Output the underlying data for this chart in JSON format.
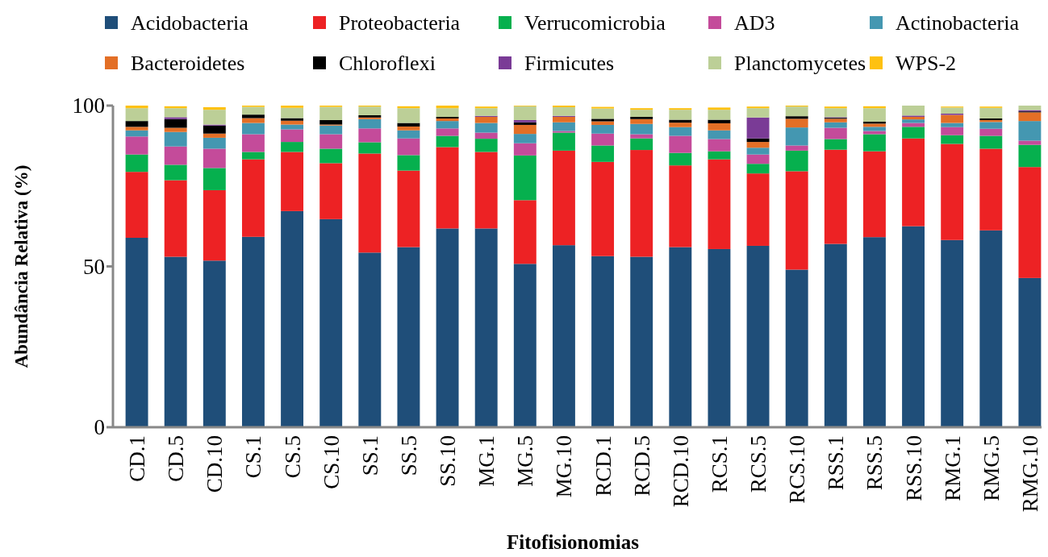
{
  "chart_data": {
    "type": "bar",
    "stacked": true,
    "xlabel": "Fitofisionomias",
    "ylabel": "Abundância Relativa (%)",
    "legend": "top",
    "ylim": [
      0,
      100
    ],
    "yticks": [
      0,
      50,
      100
    ],
    "grid": false,
    "categories": [
      "CD.1",
      "CD.5",
      "CD.10",
      "CS.1",
      "CS.5",
      "CS.10",
      "SS.1",
      "SS.5",
      "SS.10",
      "MG.1",
      "MG.5",
      "MG.10",
      "RCD.1",
      "RCD.5",
      "RCD.10",
      "RCS.1",
      "RCS.5",
      "RCS.10",
      "RSS.1",
      "RSS.5",
      "RSS.10",
      "RMG.1",
      "RMG.5",
      "RMG.10"
    ],
    "series": [
      {
        "name": "Acidobacteria",
        "color": "#1f4e79",
        "values": [
          58.9,
          53.0,
          51.8,
          59.2,
          67.2,
          64.7,
          54.3,
          56.0,
          61.8,
          61.8,
          50.8,
          56.6,
          53.2,
          53.0,
          56.0,
          55.4,
          56.4,
          49.0,
          57.0,
          59.1,
          62.5,
          58.2,
          61.2,
          46.4
        ]
      },
      {
        "name": "Proteobacteria",
        "color": "#ed2224",
        "values": [
          20.5,
          23.8,
          21.9,
          24.1,
          18.4,
          17.4,
          30.8,
          23.8,
          25.3,
          23.8,
          19.8,
          29.4,
          29.3,
          33.2,
          25.4,
          27.9,
          22.5,
          30.6,
          29.3,
          26.7,
          27.3,
          29.9,
          25.4,
          34.5
        ]
      },
      {
        "name": "Verrucomicrobia",
        "color": "#06b04e",
        "values": [
          5.4,
          4.8,
          6.9,
          2.3,
          3.1,
          4.5,
          3.5,
          4.8,
          3.5,
          4.1,
          13.9,
          5.6,
          5.1,
          3.6,
          3.9,
          2.5,
          3.0,
          6.4,
          3.3,
          5.3,
          3.6,
          2.7,
          4.0,
          6.9
        ]
      },
      {
        "name": "AD3",
        "color": "#c44b9a",
        "values": [
          5.6,
          5.7,
          6.0,
          5.5,
          3.9,
          4.5,
          4.3,
          5.2,
          2.3,
          1.9,
          3.8,
          0.5,
          3.7,
          1.3,
          5.3,
          3.8,
          2.9,
          1.6,
          3.5,
          1.0,
          1.2,
          2.5,
          2.2,
          1.3
        ]
      },
      {
        "name": "Actinobacteria",
        "color": "#4497b1",
        "values": [
          1.9,
          4.5,
          3.4,
          3.5,
          1.5,
          2.7,
          2.9,
          2.5,
          2.3,
          3.0,
          2.9,
          2.7,
          2.7,
          3.2,
          2.7,
          2.7,
          2.1,
          5.6,
          1.7,
          1.3,
          1.1,
          1.3,
          2.1,
          6.1
        ]
      },
      {
        "name": "Bacteroidetes",
        "color": "#e36f26",
        "values": [
          1.1,
          1.3,
          1.3,
          1.5,
          1.2,
          0.3,
          0.5,
          1.2,
          0.8,
          1.9,
          2.8,
          1.7,
          1.1,
          1.5,
          1.4,
          2.2,
          1.8,
          2.7,
          1.1,
          1.0,
          0.8,
          2.5,
          0.6,
          2.7
        ]
      },
      {
        "name": "Chloroflexi",
        "color": "#000000",
        "values": [
          1.8,
          2.7,
          2.5,
          1.1,
          0.8,
          1.4,
          0.7,
          1.1,
          0.5,
          0,
          0.8,
          0,
          0.8,
          0.7,
          0.9,
          1.1,
          1.1,
          0.8,
          0.3,
          0.6,
          0,
          0,
          0.5,
          0.3
        ]
      },
      {
        "name": "Firmicutes",
        "color": "#7a3b96",
        "values": [
          0,
          0.6,
          0.3,
          0,
          0,
          0,
          0,
          0,
          0,
          0.3,
          0.7,
          0.3,
          null,
          0,
          0,
          0,
          6.5,
          0,
          0.2,
          0,
          0.4,
          0.4,
          0,
          0.4
        ]
      },
      {
        "name": "Planctomycetes",
        "color": "#bccf97",
        "values": [
          4.0,
          2.8,
          4.6,
          2.4,
          3.2,
          4.1,
          2.7,
          4.6,
          2.7,
          2.4,
          4.3,
          2.7,
          3.2,
          2.2,
          3.1,
          3.1,
          2.9,
          3.0,
          2.8,
          4.2,
          3.1,
          1.9,
          3.3,
          1.4
        ]
      },
      {
        "name": "WPS-2",
        "color": "#fec110",
        "values": [
          0.8,
          0.6,
          0.8,
          0.4,
          0.7,
          0.4,
          0.3,
          0.6,
          0.8,
          0.5,
          0.2,
          0.5,
          0.5,
          0.5,
          0.5,
          0.7,
          0.5,
          0.3,
          0.5,
          0.6,
          0,
          0.3,
          0.4,
          0
        ]
      }
    ]
  }
}
